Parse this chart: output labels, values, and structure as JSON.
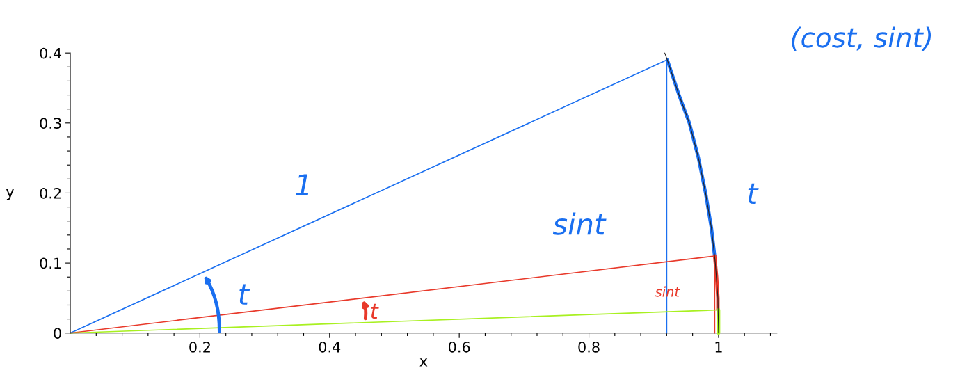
{
  "chart_data": {
    "type": "line",
    "xlabel": "x",
    "ylabel": "y",
    "xlim": [
      0,
      1.09
    ],
    "ylim": [
      0,
      0.4
    ],
    "xticks": [
      {
        "value": 0.04,
        "label": null
      },
      {
        "value": 0.08,
        "label": null
      },
      {
        "value": 0.12,
        "label": null
      },
      {
        "value": 0.16,
        "label": null
      },
      {
        "value": 0.2,
        "label": "0.2"
      },
      {
        "value": 0.24,
        "label": null
      },
      {
        "value": 0.28,
        "label": null
      },
      {
        "value": 0.32,
        "label": null
      },
      {
        "value": 0.36,
        "label": null
      },
      {
        "value": 0.4,
        "label": "0.4"
      },
      {
        "value": 0.44,
        "label": null
      },
      {
        "value": 0.48,
        "label": null
      },
      {
        "value": 0.52,
        "label": null
      },
      {
        "value": 0.56,
        "label": null
      },
      {
        "value": 0.6,
        "label": "0.6"
      },
      {
        "value": 0.64,
        "label": null
      },
      {
        "value": 0.68,
        "label": null
      },
      {
        "value": 0.72,
        "label": null
      },
      {
        "value": 0.76,
        "label": null
      },
      {
        "value": 0.8,
        "label": "0.8"
      },
      {
        "value": 0.84,
        "label": null
      },
      {
        "value": 0.88,
        "label": null
      },
      {
        "value": 0.92,
        "label": null
      },
      {
        "value": 0.96,
        "label": null
      },
      {
        "value": 1,
        "label": "1"
      },
      {
        "value": 1.04,
        "label": null
      },
      {
        "value": 1.08,
        "label": null
      }
    ],
    "yticks": [
      0,
      {
        "value": 0.02,
        "label": null
      },
      {
        "value": 0.04,
        "label": null
      },
      {
        "value": 0.06,
        "label": null
      },
      {
        "value": 0.08,
        "label": null
      },
      0.1,
      {
        "value": 0.12,
        "label": null
      },
      {
        "value": 0.14,
        "label": null
      },
      {
        "value": 0.16,
        "label": null
      },
      {
        "value": 0.18,
        "label": null
      },
      0.2,
      {
        "value": 0.22,
        "label": null
      },
      {
        "value": 0.24,
        "label": null
      },
      {
        "value": 0.26,
        "label": null
      },
      {
        "value": 0.28,
        "label": null
      },
      0.3,
      {
        "value": 0.32,
        "label": null
      },
      {
        "value": 0.34,
        "label": null
      },
      {
        "value": 0.36,
        "label": null
      },
      {
        "value": 0.38,
        "label": null
      },
      0.4
    ],
    "grid": false,
    "marker": "none",
    "line_style": "solid",
    "series": [
      {
        "color": "#222222",
        "x": [
          1,
          0.999,
          0.995,
          0.989,
          0.98,
          0.969,
          0.955,
          0.939,
          0.921,
          0.917
        ],
        "values": [
          0,
          0.05,
          0.1,
          0.15,
          0.2,
          0.25,
          0.3,
          0.34,
          0.39,
          0.4
        ]
      },
      {
        "color": "#1a6ff0",
        "x": [
          0,
          0.92
        ],
        "values": [
          0,
          0.39
        ]
      },
      {
        "color": "#1a6ff0",
        "x": [
          0.92,
          0.92
        ],
        "values": [
          0,
          0.39
        ]
      },
      {
        "color": "#e8392a",
        "x": [
          0,
          0.994
        ],
        "values": [
          0,
          0.11
        ]
      },
      {
        "color": "#e8392a",
        "x": [
          0.994,
          0.994
        ],
        "values": [
          0,
          0.11
        ]
      },
      {
        "color": "#a8f020",
        "x": [
          0,
          1
        ],
        "values": [
          0,
          0.033
        ]
      },
      {
        "color": "#1a6ff0",
        "x": [
          0.994,
          0.989,
          0.98,
          0.969,
          0.955,
          0.939,
          0.921
        ],
        "values": [
          0.11,
          0.15,
          0.2,
          0.25,
          0.3,
          0.34,
          0.39
        ]
      },
      {
        "color": "#e8392a",
        "x": [
          0.999,
          0.999,
          0.997,
          0.994
        ],
        "values": [
          0.033,
          0.05,
          0.08,
          0.11
        ]
      },
      {
        "color": "#a8f020",
        "x": [
          1,
          1,
          1
        ],
        "values": [
          0,
          0.015,
          0.033
        ]
      }
    ],
    "annotations": [
      "(cost, sint)",
      "1",
      "sint",
      "t",
      "t",
      "t",
      "sint"
    ]
  }
}
